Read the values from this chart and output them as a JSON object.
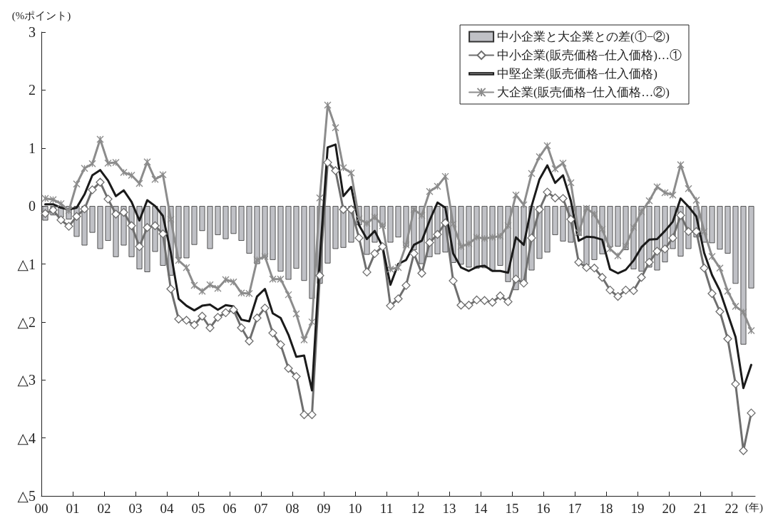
{
  "chart_data": {
    "type": "line",
    "ylabel": "(%ポイント)",
    "xlabel": "(年)",
    "x": [
      0.125,
      0.375,
      0.625,
      0.875,
      1.125,
      1.375,
      1.625,
      1.875,
      2.125,
      2.375,
      2.625,
      2.875,
      3.125,
      3.375,
      3.625,
      3.875,
      4.125,
      4.375,
      4.625,
      4.875,
      5.125,
      5.375,
      5.625,
      5.875,
      6.125,
      6.375,
      6.625,
      6.875,
      7.125,
      7.375,
      7.625,
      7.875,
      8.125,
      8.375,
      8.625,
      8.875,
      9.125,
      9.375,
      9.625,
      9.875,
      10.125,
      10.375,
      10.625,
      10.875,
      11.125,
      11.375,
      11.625,
      11.875,
      12.125,
      12.375,
      12.625,
      12.875,
      13.125,
      13.375,
      13.625,
      13.875,
      14.125,
      14.375,
      14.625,
      14.875,
      15.125,
      15.375,
      15.625,
      15.875,
      16.125,
      16.375,
      16.625,
      16.875,
      17.125,
      17.375,
      17.625,
      17.875,
      18.125,
      18.375,
      18.625,
      18.875,
      19.125,
      19.375,
      19.625,
      19.875,
      20.125,
      20.375,
      20.625,
      20.875,
      21.125,
      21.375,
      21.625,
      21.875,
      22.125,
      22.375,
      22.625
    ],
    "series": [
      {
        "name": "中小企業と大企業との差(①−②)",
        "type": "bar",
        "color": "#c0c1c6",
        "values": [
          -0.25,
          -0.16,
          -0.2,
          -0.23,
          -0.53,
          -0.68,
          -0.46,
          -0.74,
          -0.6,
          -0.88,
          -0.68,
          -0.88,
          -1.09,
          -1.14,
          -0.79,
          -1.03,
          -1.2,
          -0.9,
          -0.9,
          -0.67,
          -0.43,
          -0.74,
          -0.5,
          -0.57,
          -0.48,
          -0.6,
          -0.82,
          -1.0,
          -0.89,
          -0.93,
          -1.13,
          -1.27,
          -1.08,
          -1.29,
          -1.6,
          -1.34,
          -0.99,
          -0.74,
          -0.72,
          -0.63,
          -0.33,
          -0.84,
          -0.63,
          -0.36,
          -0.63,
          -0.54,
          -0.7,
          -0.76,
          -1.0,
          -0.88,
          -0.83,
          -0.8,
          -0.98,
          -1.01,
          -1.06,
          -1.08,
          -1.07,
          -1.12,
          -1.03,
          -1.31,
          -1.45,
          -1.35,
          -1.11,
          -0.91,
          -0.8,
          -0.5,
          -0.61,
          -0.63,
          -0.51,
          -1.02,
          -0.93,
          -0.83,
          -0.71,
          -0.7,
          -0.76,
          -1.09,
          -1.13,
          -1.06,
          -1.11,
          -0.97,
          -0.74,
          -0.87,
          -0.74,
          -0.54,
          -0.63,
          -0.64,
          -0.75,
          -0.82,
          -1.34,
          -2.39,
          -1.42
        ]
      },
      {
        "name": "中小企業(販売価格−仕入価格)…①",
        "color": "#6e6e6e",
        "marker": "diamond",
        "values": [
          -0.13,
          -0.07,
          -0.24,
          -0.35,
          -0.18,
          -0.05,
          0.28,
          0.41,
          0.12,
          -0.14,
          -0.11,
          -0.34,
          -0.7,
          -0.37,
          -0.34,
          -0.48,
          -1.43,
          -1.95,
          -1.97,
          -2.05,
          -1.9,
          -2.1,
          -1.92,
          -1.84,
          -1.79,
          -2.1,
          -2.33,
          -1.93,
          -1.76,
          -2.19,
          -2.39,
          -2.8,
          -2.94,
          -3.6,
          -3.6,
          -1.2,
          0.75,
          0.61,
          -0.06,
          -0.06,
          -0.55,
          -1.14,
          -0.82,
          -0.7,
          -1.72,
          -1.6,
          -1.37,
          -0.82,
          -1.16,
          -0.63,
          -0.49,
          -0.29,
          -1.29,
          -1.71,
          -1.71,
          -1.62,
          -1.63,
          -1.66,
          -1.55,
          -1.65,
          -1.26,
          -1.33,
          -0.55,
          -0.06,
          0.24,
          0.14,
          0.13,
          -0.23,
          -0.97,
          -1.06,
          -1.07,
          -1.23,
          -1.45,
          -1.56,
          -1.45,
          -1.46,
          -1.23,
          -0.97,
          -0.78,
          -0.74,
          -0.55,
          -0.16,
          -0.44,
          -0.44,
          -1.07,
          -1.51,
          -1.82,
          -2.29,
          -3.07,
          -4.22,
          -3.57
        ]
      },
      {
        "name": "中堅企業(販売価格−仕入価格)",
        "color": "#1a1a1a",
        "values": [
          0.03,
          0.03,
          -0.03,
          -0.06,
          -0.03,
          0.2,
          0.53,
          0.62,
          0.44,
          0.17,
          0.27,
          0.07,
          -0.25,
          0.1,
          0.0,
          -0.17,
          -0.8,
          -1.6,
          -1.72,
          -1.8,
          -1.72,
          -1.7,
          -1.79,
          -1.71,
          -1.73,
          -1.96,
          -1.99,
          -1.56,
          -1.43,
          -1.85,
          -1.93,
          -2.22,
          -2.6,
          -2.58,
          -3.18,
          -0.9,
          1.01,
          1.06,
          0.17,
          0.33,
          -0.33,
          -0.57,
          -0.43,
          -0.7,
          -1.36,
          -1.0,
          -0.93,
          -0.67,
          -0.6,
          -0.25,
          0.06,
          -0.03,
          -0.82,
          -1.06,
          -1.12,
          -1.05,
          -1.03,
          -1.12,
          -1.12,
          -1.15,
          -0.54,
          -0.67,
          0.0,
          0.46,
          0.7,
          0.4,
          0.53,
          0.09,
          -0.6,
          -0.53,
          -0.54,
          -0.58,
          -1.09,
          -1.16,
          -1.1,
          -0.94,
          -0.71,
          -0.58,
          -0.57,
          -0.43,
          -0.27,
          0.13,
          -0.01,
          -0.18,
          -0.81,
          -1.19,
          -1.46,
          -1.86,
          -2.26,
          -3.14,
          -2.74
        ]
      },
      {
        "name": "大企業(販売価格−仕入価格…②)",
        "color": "#8c8c8c",
        "marker": "cross",
        "values": [
          0.13,
          0.11,
          0.04,
          -0.08,
          0.38,
          0.65,
          0.73,
          1.15,
          0.74,
          0.75,
          0.58,
          0.53,
          0.39,
          0.76,
          0.46,
          0.54,
          -0.23,
          -0.94,
          -1.06,
          -1.37,
          -1.47,
          -1.36,
          -1.42,
          -1.27,
          -1.31,
          -1.5,
          -1.51,
          -0.93,
          -0.87,
          -1.26,
          -1.26,
          -1.53,
          -1.86,
          -2.31,
          -2.0,
          0.14,
          1.74,
          1.35,
          0.66,
          0.57,
          -0.22,
          -0.3,
          -0.19,
          -0.34,
          -1.09,
          -1.06,
          -0.67,
          -0.06,
          -0.16,
          0.25,
          0.34,
          0.51,
          -0.31,
          -0.7,
          -0.65,
          -0.54,
          -0.56,
          -0.54,
          -0.52,
          -0.34,
          0.19,
          0.02,
          0.56,
          0.85,
          1.04,
          0.64,
          0.74,
          0.4,
          -0.46,
          -0.04,
          -0.14,
          -0.4,
          -0.74,
          -0.86,
          -0.69,
          -0.37,
          -0.1,
          0.09,
          0.33,
          0.23,
          0.19,
          0.71,
          0.3,
          0.1,
          -0.44,
          -0.87,
          -1.07,
          -1.47,
          -1.73,
          -1.83,
          -2.15
        ]
      }
    ],
    "xlim": [
      0,
      22.75
    ],
    "xticks": [
      {
        "value": 0,
        "label": "00"
      },
      {
        "value": 1,
        "label": "01"
      },
      {
        "value": 2,
        "label": "02"
      },
      {
        "value": 3,
        "label": "03"
      },
      {
        "value": 4,
        "label": "04"
      },
      {
        "value": 5,
        "label": "05"
      },
      {
        "value": 6,
        "label": "06"
      },
      {
        "value": 7,
        "label": "07"
      },
      {
        "value": 8,
        "label": "08"
      },
      {
        "value": 9,
        "label": "09"
      },
      10,
      11,
      12,
      13,
      14,
      15,
      16,
      17,
      18,
      19,
      20,
      21,
      22
    ],
    "ylim": [
      -5,
      3
    ],
    "yticks": [
      3,
      2,
      1,
      0,
      {
        "value": -1,
        "label": "△1"
      },
      {
        "value": -2,
        "label": "△2"
      },
      {
        "value": -3,
        "label": "△3"
      },
      {
        "value": -4,
        "label": "△4"
      },
      {
        "value": -5,
        "label": "△5"
      }
    ],
    "grid": false,
    "legend": "top right"
  }
}
